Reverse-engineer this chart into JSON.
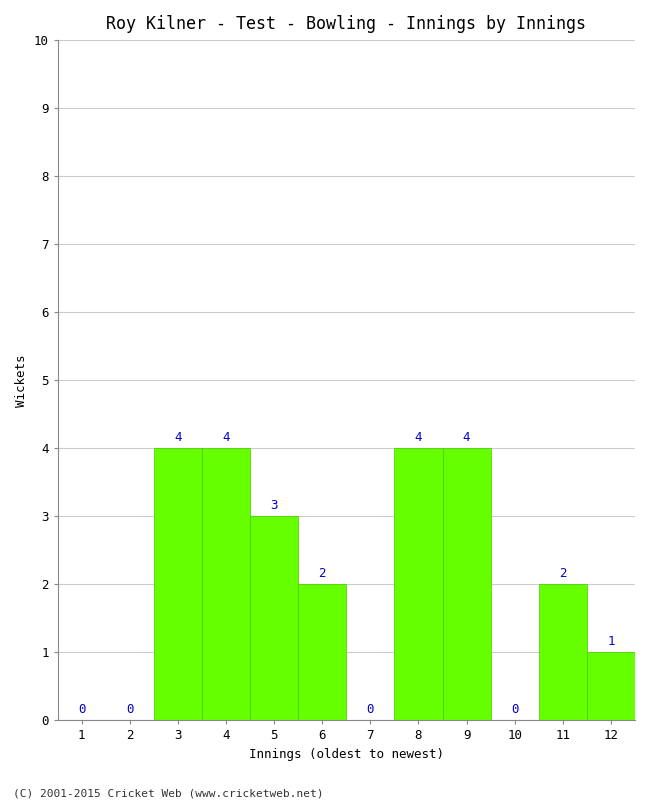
{
  "title": "Roy Kilner - Test - Bowling - Innings by Innings",
  "xlabel": "Innings (oldest to newest)",
  "ylabel": "Wickets",
  "innings": [
    1,
    2,
    3,
    4,
    5,
    6,
    7,
    8,
    9,
    10,
    11,
    12
  ],
  "wickets": [
    0,
    0,
    4,
    4,
    3,
    2,
    0,
    4,
    4,
    0,
    2,
    1
  ],
  "bar_color": "#66ff00",
  "bar_edge_color": "#44cc00",
  "label_color": "#0000cc",
  "background_color": "#ffffff",
  "plot_bg_color": "#ffffff",
  "ylim": [
    0,
    10
  ],
  "yticks": [
    0,
    1,
    2,
    3,
    4,
    5,
    6,
    7,
    8,
    9,
    10
  ],
  "title_fontsize": 12,
  "axis_label_fontsize": 9,
  "tick_fontsize": 9,
  "value_label_fontsize": 9,
  "footer_text": "(C) 2001-2015 Cricket Web (www.cricketweb.net)",
  "footer_fontsize": 8,
  "bar_width": 1.0
}
